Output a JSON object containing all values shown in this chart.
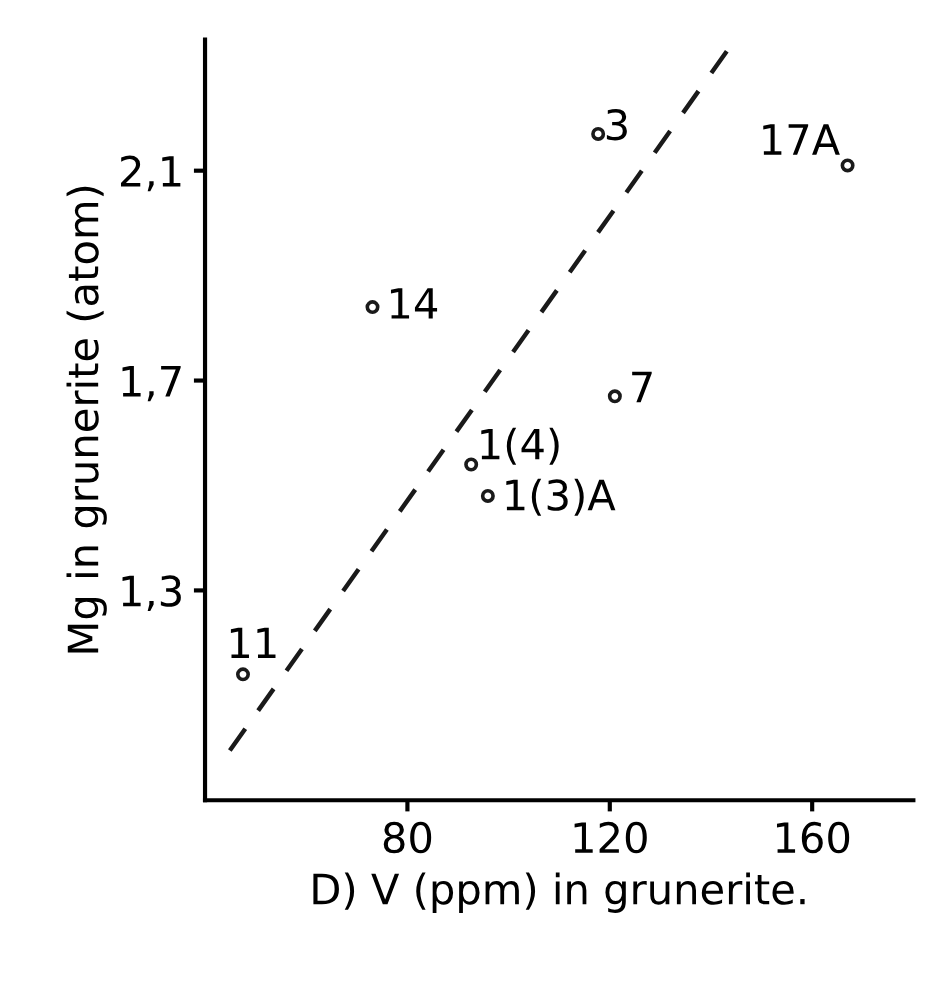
{
  "chart_data": {
    "type": "scatter",
    "xlabel": "D) V (ppm) in grunerite.",
    "ylabel": "Mg in grunerite (atom)",
    "xlim": [
      40,
      180
    ],
    "ylim": [
      0.9,
      2.35
    ],
    "xticks": [
      80,
      120,
      160
    ],
    "yticks": [
      {
        "value": 1.3,
        "label": "1,3"
      },
      {
        "value": 1.7,
        "label": "1,7"
      },
      {
        "value": 2.1,
        "label": "2,1"
      }
    ],
    "grid": false,
    "legend": false,
    "series": [
      {
        "color": "#1a1a1a",
        "marker": "circle",
        "x": [
          47.5,
          73.1,
          92.6,
          95.9,
          121,
          117.7,
          167
        ],
        "values": [
          1.14,
          1.84,
          1.54,
          1.48,
          1.67,
          2.17,
          2.11
        ]
      },
      {
        "type": "line",
        "color": "#1a1a1a",
        "line_style": "dashed",
        "marker": "none",
        "x": [
          44.9,
          143.3
        ],
        "values": [
          0.995,
          2.33
        ]
      }
    ],
    "annotations": [
      {
        "text": "11",
        "x": 47.5,
        "y": 1.14
      },
      {
        "text": "14",
        "x": 73.1,
        "y": 1.84
      },
      {
        "text": "1(4)",
        "x": 92.6,
        "y": 1.54
      },
      {
        "text": "1(3)A",
        "x": 95.9,
        "y": 1.48
      },
      {
        "text": "7",
        "x": 121,
        "y": 1.67
      },
      {
        "text": "3",
        "x": 117.7,
        "y": 2.17
      },
      {
        "text": "17A",
        "x": 167,
        "y": 2.11
      }
    ]
  }
}
